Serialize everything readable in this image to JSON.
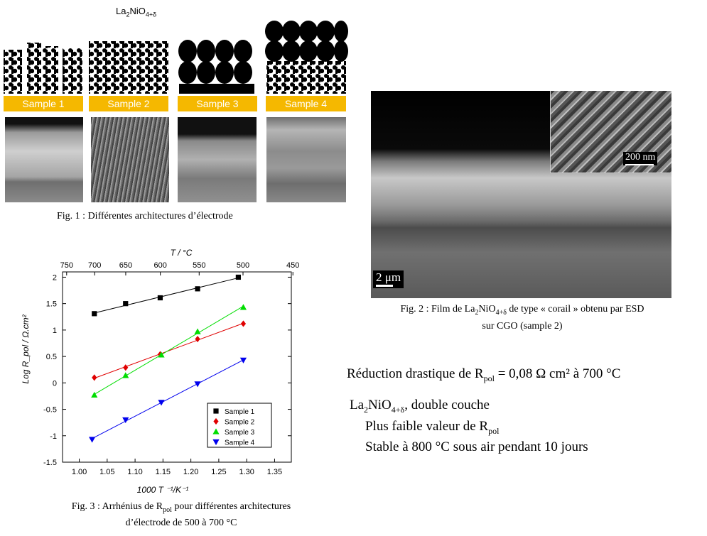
{
  "fig1": {
    "title_base": "La",
    "title_sub1": "2",
    "title_mid": "NiO",
    "title_sub2": "4+δ",
    "samples": [
      "Sample 1",
      "Sample 2",
      "Sample 3",
      "Sample 4"
    ],
    "caption": "Fig. 1 : Différentes architectures d’électrode"
  },
  "fig2": {
    "scale_main": "2 μm",
    "scale_inset": "200 nm",
    "caption_line1_a": "Fig. 2 : Film de La",
    "caption_line1_sub1": "2",
    "caption_line1_b": "NiO",
    "caption_line1_sub2": "4+δ",
    "caption_line1_c": " de type « corail » obtenu par ESD",
    "caption_line2": "sur CGO (sample 2)"
  },
  "fig3": {
    "caption_line1_a": "Fig. 3 : Arrhénius de R",
    "caption_line1_sub": "pol",
    "caption_line1_b": " pour différentes architectures",
    "caption_line2": "d’électrode de 500 à 700 °C"
  },
  "text": {
    "line1_a": "Réduction drastique de R",
    "line1_sub": "pol",
    "line1_b": " = 0,08 Ω cm² à 700 °C",
    "line2_a": "La",
    "line2_sub1": "2",
    "line2_b": "NiO",
    "line2_sub2": "4+δ",
    "line2_c": ", double couche",
    "line3_a": "Plus faible valeur de R",
    "line3_sub": "pol",
    "line4": "Stable à 800 °C sous  air pendant  10 jours"
  },
  "chart_data": {
    "type": "scatter",
    "xlabel": "1000 T ⁻¹/K⁻¹",
    "ylabel": "Log R_pol / Ω.cm²",
    "top_axis_label": "T / °C",
    "xlim": [
      0.97,
      1.38
    ],
    "ylim": [
      -1.5,
      2.1
    ],
    "x_ticks": [
      1.0,
      1.05,
      1.1,
      1.15,
      1.2,
      1.25,
      1.3,
      1.35
    ],
    "x_tick_labels": [
      "1.00",
      "1.05",
      "1.10",
      "1.15",
      "1.20",
      "1.25",
      "1.30",
      "1.35"
    ],
    "y_ticks": [
      -1.5,
      -1,
      -0.5,
      0,
      0.5,
      1,
      1.5,
      2
    ],
    "y_tick_labels": [
      "-1.5",
      "-1",
      "-0.5",
      "0",
      "0.5",
      "1",
      "1.5",
      "2"
    ],
    "top_ticks_T": [
      750,
      700,
      650,
      600,
      550,
      500,
      450
    ],
    "legend_position": "bottom-right",
    "series": [
      {
        "name": "Sample 1",
        "color": "#000000",
        "marker": "square",
        "x": [
          1.027,
          1.083,
          1.145,
          1.212,
          1.285
        ],
        "y": [
          1.31,
          1.5,
          1.61,
          1.78,
          2.0
        ]
      },
      {
        "name": "Sample 2",
        "color": "#e00000",
        "marker": "diamond",
        "x": [
          1.027,
          1.083,
          1.145,
          1.212,
          1.294
        ],
        "y": [
          0.1,
          0.29,
          0.54,
          0.83,
          1.12
        ]
      },
      {
        "name": "Sample 3",
        "color": "#00dd00",
        "marker": "triangle-up",
        "x": [
          1.027,
          1.083,
          1.147,
          1.212,
          1.294
        ],
        "y": [
          -0.23,
          0.14,
          0.53,
          0.97,
          1.43
        ]
      },
      {
        "name": "Sample 4",
        "color": "#0000ee",
        "marker": "triangle-down",
        "x": [
          1.023,
          1.083,
          1.147,
          1.212,
          1.294
        ],
        "y": [
          -1.07,
          -0.7,
          -0.37,
          -0.02,
          0.43
        ]
      }
    ]
  }
}
